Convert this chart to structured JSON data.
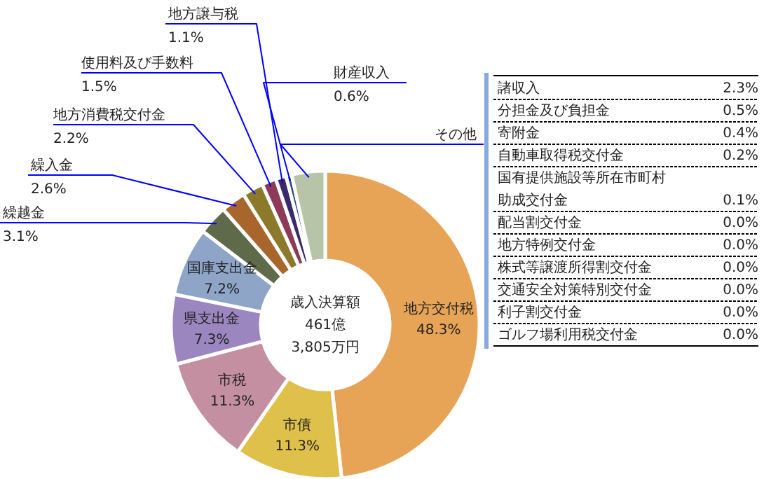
{
  "chart_data": {
    "type": "donut",
    "title": "歳入決算額\n461億\n3,805万円",
    "categories": [
      "地方交付税",
      "市債",
      "市税",
      "県支出金",
      "国庫支出金",
      "繰越金",
      "繰入金",
      "地方消費税交付金",
      "使用料及び手数料",
      "地方譲与税",
      "財産収入",
      "その他"
    ],
    "values": [
      48.3,
      11.3,
      11.3,
      7.3,
      7.2,
      3.1,
      2.6,
      2.2,
      1.5,
      1.1,
      0.6,
      3.5
    ],
    "value_labels": [
      "48.3%",
      "11.3%",
      "11.3%",
      "7.3%",
      "7.2%",
      "3.1%",
      "2.6%",
      "2.2%",
      "1.5%",
      "1.1%",
      "0.6%",
      null
    ],
    "colors": [
      "#e8a456",
      "#dfc04a",
      "#c48fa0",
      "#9c86c0",
      "#8ea5c8",
      "#5e6a4a",
      "#a8662c",
      "#8c7a2a",
      "#8c3a58",
      "#3a2a6a",
      "#2a4a7a",
      "#b8c4a8"
    ],
    "annotations": [
      "諸収入",
      "2.3%",
      "分担金及び負担金",
      "0.5%",
      "寄附金",
      "0.4%",
      "自動車取得税交付金",
      "0.2%",
      "国有提供施設等所在市町村助成交付金",
      "0.1%",
      "配当割交付金",
      "0.0%",
      "地方特例交付金",
      "0.0%",
      "株式等譲渡所得割交付金",
      "0.0%",
      "交通安全対策特別交付金",
      "0.0%",
      "利子割交付金",
      "0.0%",
      "ゴルフ場利用税交付金",
      "0.0%"
    ]
  }
}
